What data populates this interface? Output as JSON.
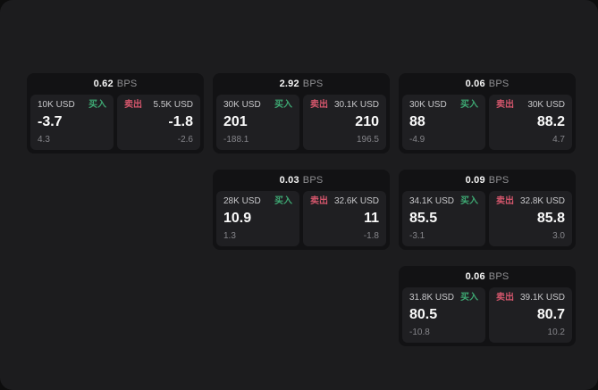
{
  "labels": {
    "bps_unit": "BPS",
    "buy": "买入",
    "sell": "卖出"
  },
  "colors": {
    "buy": "#3ea873",
    "sell": "#d4566c"
  },
  "cards": [
    {
      "bps": "0.62",
      "buy": {
        "amount": "10K USD",
        "value": "-3.7",
        "sub": "4.3"
      },
      "sell": {
        "amount": "5.5K USD",
        "value": "-1.8",
        "sub": "-2.6"
      }
    },
    {
      "bps": "2.92",
      "buy": {
        "amount": "30K USD",
        "value": "201",
        "sub": "-188.1"
      },
      "sell": {
        "amount": "30.1K USD",
        "value": "210",
        "sub": "196.5"
      }
    },
    {
      "bps": "0.06",
      "buy": {
        "amount": "30K USD",
        "value": "88",
        "sub": "-4.9"
      },
      "sell": {
        "amount": "30K USD",
        "value": "88.2",
        "sub": "4.7"
      }
    },
    {
      "bps": "0.03",
      "buy": {
        "amount": "28K USD",
        "value": "10.9",
        "sub": "1.3"
      },
      "sell": {
        "amount": "32.6K USD",
        "value": "11",
        "sub": "-1.8"
      }
    },
    {
      "bps": "0.09",
      "buy": {
        "amount": "34.1K USD",
        "value": "85.5",
        "sub": "-3.1"
      },
      "sell": {
        "amount": "32.8K USD",
        "value": "85.8",
        "sub": "3.0"
      }
    },
    {
      "bps": "0.06",
      "buy": {
        "amount": "31.8K USD",
        "value": "80.5",
        "sub": "-10.8"
      },
      "sell": {
        "amount": "39.1K USD",
        "value": "80.7",
        "sub": "10.2"
      }
    }
  ]
}
